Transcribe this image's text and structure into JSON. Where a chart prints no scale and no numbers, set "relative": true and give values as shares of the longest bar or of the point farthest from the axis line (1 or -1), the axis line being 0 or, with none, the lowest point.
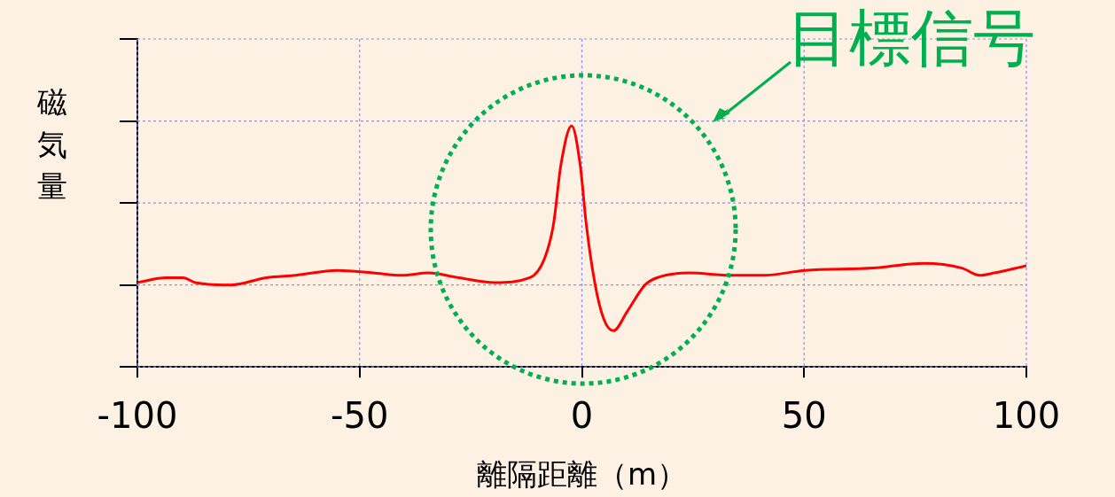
{
  "chart_data": {
    "type": "line",
    "relative": true,
    "xlabel": "離隔距離（m）",
    "ylabel": "磁気量",
    "annotations": [
      "目標信号"
    ],
    "grid": true,
    "xlim": [
      -100,
      100
    ],
    "xticks": [
      -100,
      -50,
      0,
      50,
      100
    ],
    "series": [
      {
        "color": "#ff0000",
        "x": [
          -100,
          -93.6,
          -89.7,
          -87,
          -79,
          -71,
          -64.4,
          -55,
          -47,
          -40.5,
          -34.5,
          -27.7,
          -19.7,
          -11.7,
          -8.4,
          -6.4,
          -4.7,
          -2.3,
          -0.4,
          1,
          2.9,
          4.9,
          7.1,
          10.2,
          14.2,
          16.9,
          24.2,
          33.5,
          40.8,
          50.2,
          65.5,
          76.9,
          85.5,
          89.5,
          92.8,
          100
        ],
        "values": [
          0.35,
          0.37,
          0.37,
          0.35,
          0.34,
          0.37,
          0.38,
          0.4,
          0.39,
          0.38,
          0.39,
          0.37,
          0.35,
          0.37,
          0.45,
          0.59,
          0.84,
          1,
          0.84,
          0.59,
          0.35,
          0.2,
          0.15,
          0.23,
          0.34,
          0.37,
          0.39,
          0.38,
          0.38,
          0.4,
          0.41,
          0.43,
          0.41,
          0.38,
          0.39,
          0.42
        ]
      }
    ]
  }
}
